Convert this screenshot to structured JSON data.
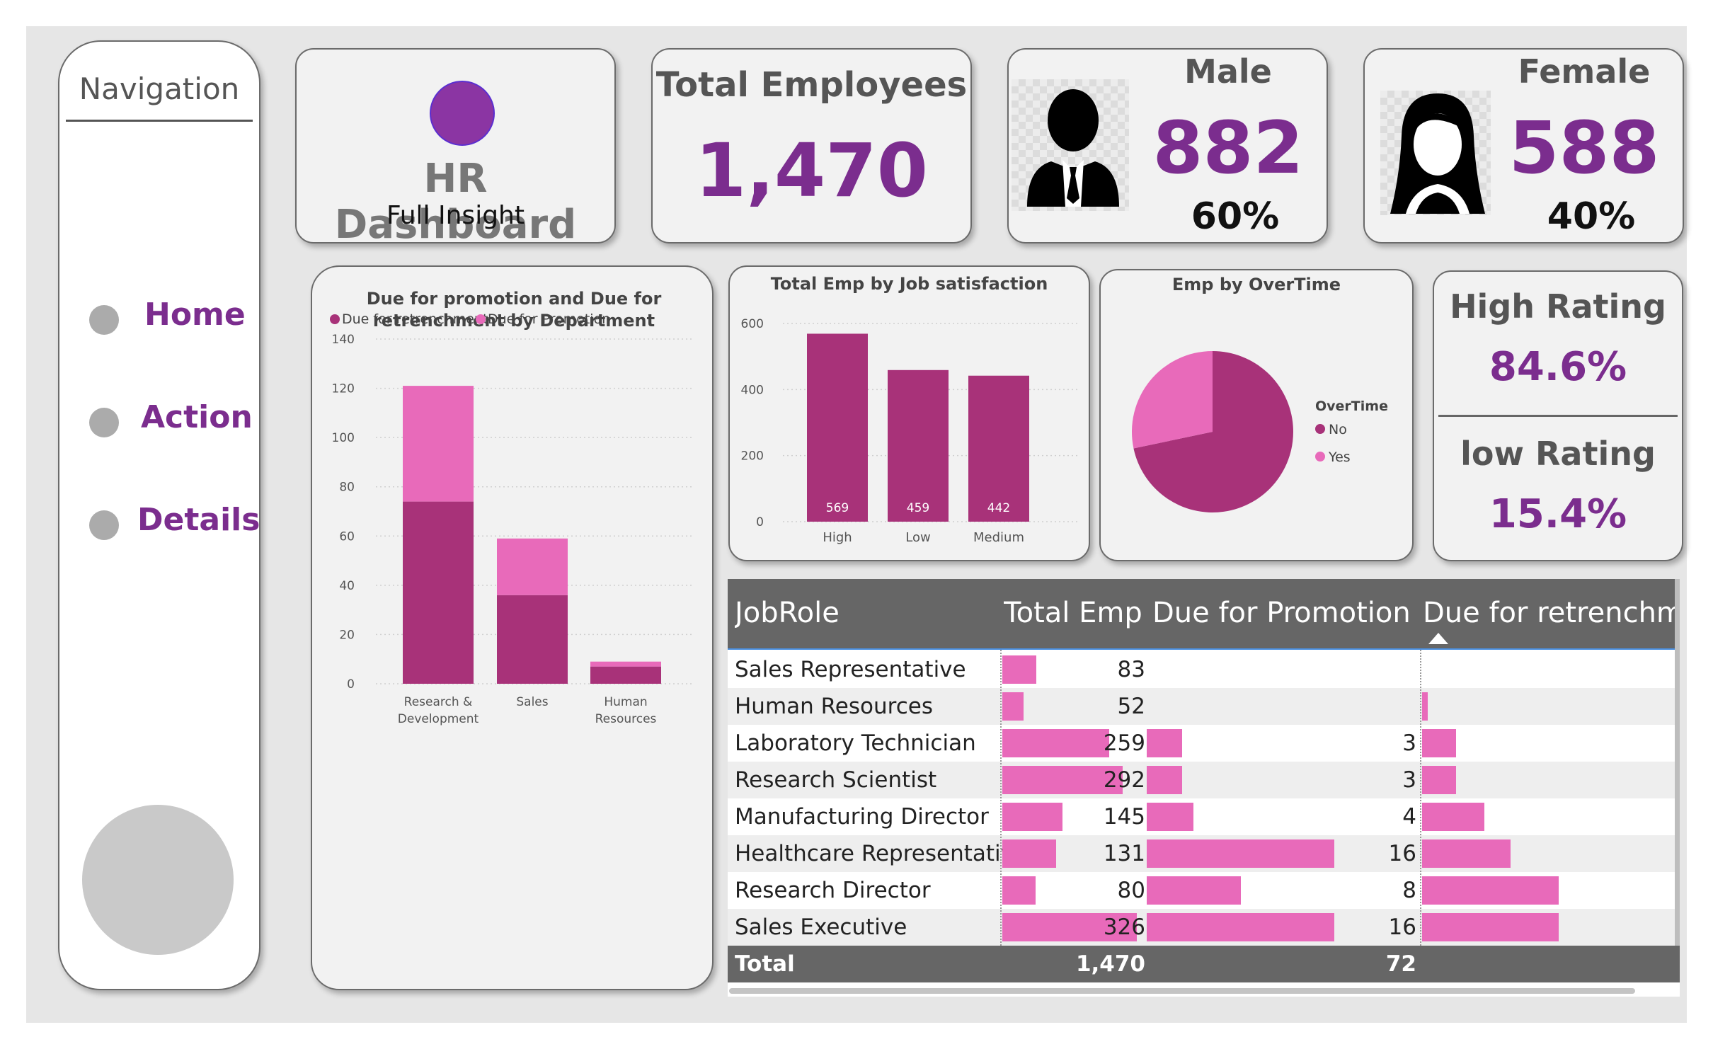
{
  "nav": {
    "title": "Navigation",
    "items": [
      {
        "label": "Home"
      },
      {
        "label": "Action"
      },
      {
        "label": "Details"
      }
    ]
  },
  "header": {
    "title": "HR Dashboard",
    "subtitle": "Full Insight"
  },
  "kpis": {
    "total": {
      "title": "Total Employees",
      "value": "1,470"
    },
    "male": {
      "title": "Male",
      "value": "882",
      "pct": "60%"
    },
    "female": {
      "title": "Female",
      "value": "588",
      "pct": "40%"
    },
    "rating": {
      "high_title": "High Rating",
      "high_value": "84.6%",
      "low_title": "low Rating",
      "low_value": "15.4%"
    }
  },
  "colors": {
    "accent": "#7b2d8e",
    "dark_series": "#a83279",
    "light_series": "#e86aba",
    "table_header": "#666666"
  },
  "chart_data": [
    {
      "type": "bar",
      "stacked": true,
      "title": "Due for promotion and Due for retrenchment by Department",
      "categories": [
        "Research & Development",
        "Sales",
        "Human Resources"
      ],
      "category_lines": [
        [
          "Research &",
          "Development"
        ],
        [
          "Sales"
        ],
        [
          "Human",
          "Resources"
        ]
      ],
      "series": [
        {
          "name": "Due for retrenchment",
          "values": [
            74,
            36,
            7
          ]
        },
        {
          "name": "Due for Promotion",
          "values": [
            47,
            23,
            2
          ]
        }
      ],
      "yticks": [
        0,
        20,
        40,
        60,
        80,
        100,
        120,
        140
      ],
      "ylim": [
        0,
        140
      ],
      "legend": "top-left",
      "grid": true
    },
    {
      "type": "bar",
      "title": "Total Emp by Job satisfaction",
      "categories": [
        "High",
        "Low",
        "Medium"
      ],
      "values": [
        569,
        459,
        442
      ],
      "yticks": [
        0,
        200,
        400,
        600
      ],
      "ylim": [
        0,
        600
      ],
      "grid": true
    },
    {
      "type": "pie",
      "title": "Emp by OverTime",
      "legend_title": "OverTime",
      "labels": [
        "No",
        "Yes"
      ],
      "values": [
        1054,
        416
      ],
      "legend": "right"
    }
  ],
  "table": {
    "columns": [
      "JobRole",
      "Total Emp",
      "Due for Promotion",
      "Due for retrenchment"
    ],
    "rows": [
      {
        "role": "Sales Representative",
        "total": 83,
        "promo": null,
        "retrench": 0
      },
      {
        "role": "Human Resources",
        "total": 52,
        "promo": null,
        "retrench": 2
      },
      {
        "role": "Laboratory Technician",
        "total": 259,
        "promo": 3,
        "retrench": 12
      },
      {
        "role": "Research Scientist",
        "total": 292,
        "promo": 3,
        "retrench": 12
      },
      {
        "role": "Manufacturing Director",
        "total": 145,
        "promo": 4,
        "retrench": 22
      },
      {
        "role": "Healthcare Representative",
        "total": 131,
        "promo": 16,
        "retrench": 31
      },
      {
        "role": "Research Director",
        "total": 80,
        "promo": 8,
        "retrench": 48
      },
      {
        "role": "Sales Executive",
        "total": 326,
        "promo": 16,
        "retrench": 48
      }
    ],
    "total_label": "Total",
    "total_emp": "1,470",
    "total_promo": "72"
  }
}
